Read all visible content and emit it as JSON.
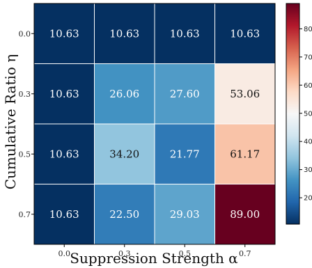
{
  "chart_data": {
    "type": "heatmap",
    "xlabel": "Suppression Strength α",
    "ylabel": "Cumulative Ratio η",
    "x_ticks": [
      "0.0",
      "0.3",
      "0.5",
      "0.7"
    ],
    "y_ticks": [
      "0.0",
      "0.3",
      "0.5",
      "0.7"
    ],
    "values": [
      [
        10.63,
        10.63,
        10.63,
        10.63
      ],
      [
        10.63,
        26.06,
        27.6,
        53.06
      ],
      [
        10.63,
        34.2,
        21.77,
        61.17
      ],
      [
        10.63,
        22.5,
        29.03,
        89.0
      ]
    ],
    "cell_labels": [
      [
        "10.63",
        "10.63",
        "10.63",
        "10.63"
      ],
      [
        "10.63",
        "26.06",
        "27.60",
        "53.06"
      ],
      [
        "10.63",
        "34.20",
        "21.77",
        "61.17"
      ],
      [
        "10.63",
        "22.50",
        "29.03",
        "89.00"
      ]
    ],
    "colormap": "RdBu_r",
    "vmin": 10.63,
    "vmax": 89.0,
    "colorbar_ticks": [
      20,
      30,
      40,
      50,
      60,
      70,
      80
    ],
    "grid": true,
    "colors": {
      "low": "#053061",
      "mid": "#f7f7f7",
      "high": "#67001f"
    }
  }
}
